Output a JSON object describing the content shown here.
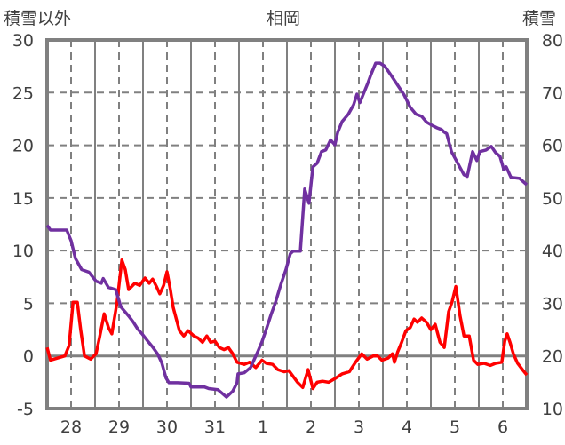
{
  "chart_data": {
    "type": "line",
    "title": "相岡",
    "ylabel_left": "積雪以外",
    "ylabel_right": "積雪",
    "xlabel": "",
    "x_unit": "days since first day 00:00",
    "xlim": [
      0,
      10
    ],
    "ylim_left": [
      -5,
      30
    ],
    "ylim_right": [
      10,
      80
    ],
    "yticks_left": [
      "-5",
      "0",
      "5",
      "10",
      "15",
      "20",
      "25",
      "30"
    ],
    "yticks_right": [
      "10",
      "20",
      "30",
      "40",
      "50",
      "60",
      "70",
      "80"
    ],
    "xtick_labels": [
      "28",
      "29",
      "30",
      "31",
      "1",
      "2",
      "3",
      "4",
      "5",
      "6"
    ],
    "grid": true,
    "series": [
      {
        "name": "積雪以外",
        "axis": "left",
        "color": "#FF0000",
        "points": [
          [
            0.0,
            0.8
          ],
          [
            0.07,
            -0.4
          ],
          [
            0.22,
            -0.2
          ],
          [
            0.37,
            0.0
          ],
          [
            0.46,
            1.0
          ],
          [
            0.54,
            5.1
          ],
          [
            0.63,
            5.1
          ],
          [
            0.7,
            2.5
          ],
          [
            0.78,
            0.0
          ],
          [
            0.91,
            -0.3
          ],
          [
            1.02,
            0.2
          ],
          [
            1.09,
            1.7
          ],
          [
            1.19,
            4.0
          ],
          [
            1.28,
            2.7
          ],
          [
            1.35,
            2.1
          ],
          [
            1.46,
            5.1
          ],
          [
            1.56,
            9.1
          ],
          [
            1.63,
            8.2
          ],
          [
            1.7,
            6.3
          ],
          [
            1.83,
            6.9
          ],
          [
            1.93,
            6.7
          ],
          [
            2.04,
            7.4
          ],
          [
            2.13,
            6.9
          ],
          [
            2.2,
            7.3
          ],
          [
            2.28,
            6.6
          ],
          [
            2.35,
            5.9
          ],
          [
            2.43,
            6.7
          ],
          [
            2.5,
            8.0
          ],
          [
            2.57,
            6.3
          ],
          [
            2.63,
            4.6
          ],
          [
            2.76,
            2.4
          ],
          [
            2.85,
            1.9
          ],
          [
            2.94,
            2.4
          ],
          [
            3.06,
            1.9
          ],
          [
            3.15,
            1.7
          ],
          [
            3.24,
            1.3
          ],
          [
            3.33,
            1.9
          ],
          [
            3.41,
            1.3
          ],
          [
            3.5,
            1.4
          ],
          [
            3.59,
            0.8
          ],
          [
            3.69,
            0.6
          ],
          [
            3.78,
            0.8
          ],
          [
            3.87,
            0.2
          ],
          [
            3.96,
            -0.6
          ],
          [
            4.11,
            -0.8
          ],
          [
            4.22,
            -0.6
          ],
          [
            4.35,
            -1.1
          ],
          [
            4.48,
            -0.4
          ],
          [
            4.57,
            -0.7
          ],
          [
            4.7,
            -0.8
          ],
          [
            4.81,
            -1.3
          ],
          [
            4.94,
            -1.5
          ],
          [
            5.04,
            -1.4
          ],
          [
            5.22,
            -2.5
          ],
          [
            5.33,
            -3.0
          ],
          [
            5.44,
            -1.3
          ],
          [
            5.54,
            -3.1
          ],
          [
            5.63,
            -2.5
          ],
          [
            5.74,
            -2.4
          ],
          [
            5.87,
            -2.5
          ],
          [
            6.02,
            -2.1
          ],
          [
            6.15,
            -1.7
          ],
          [
            6.3,
            -1.5
          ],
          [
            6.43,
            -0.6
          ],
          [
            6.56,
            0.2
          ],
          [
            6.67,
            -0.3
          ],
          [
            6.8,
            0.0
          ],
          [
            6.89,
            0.0
          ],
          [
            6.98,
            -0.4
          ],
          [
            7.11,
            -0.2
          ],
          [
            7.2,
            0.2
          ],
          [
            7.24,
            -0.6
          ],
          [
            7.31,
            0.4
          ],
          [
            7.39,
            1.3
          ],
          [
            7.48,
            2.4
          ],
          [
            7.57,
            2.7
          ],
          [
            7.65,
            3.5
          ],
          [
            7.72,
            3.2
          ],
          [
            7.81,
            3.6
          ],
          [
            7.91,
            3.2
          ],
          [
            8.0,
            2.5
          ],
          [
            8.09,
            3.0
          ],
          [
            8.19,
            1.3
          ],
          [
            8.28,
            0.8
          ],
          [
            8.37,
            4.2
          ],
          [
            8.44,
            5.1
          ],
          [
            8.52,
            6.6
          ],
          [
            8.61,
            3.8
          ],
          [
            8.69,
            1.9
          ],
          [
            8.8,
            1.9
          ],
          [
            8.89,
            -0.4
          ],
          [
            8.98,
            -0.8
          ],
          [
            9.11,
            -0.7
          ],
          [
            9.24,
            -0.9
          ],
          [
            9.35,
            -0.7
          ],
          [
            9.48,
            -0.6
          ],
          [
            9.54,
            1.4
          ],
          [
            9.59,
            2.1
          ],
          [
            9.65,
            1.3
          ],
          [
            9.72,
            0.2
          ],
          [
            9.81,
            -0.7
          ],
          [
            9.91,
            -1.3
          ],
          [
            10.0,
            -1.8
          ]
        ]
      },
      {
        "name": "積雪",
        "axis": "right",
        "color": "#7030A0",
        "points": [
          [
            0.0,
            44.8
          ],
          [
            0.07,
            43.9
          ],
          [
            0.41,
            43.9
          ],
          [
            0.5,
            41.9
          ],
          [
            0.59,
            38.5
          ],
          [
            0.72,
            36.4
          ],
          [
            0.87,
            35.9
          ],
          [
            1.02,
            34.2
          ],
          [
            1.13,
            33.8
          ],
          [
            1.17,
            34.7
          ],
          [
            1.28,
            33.0
          ],
          [
            1.43,
            32.6
          ],
          [
            1.54,
            29.3
          ],
          [
            1.7,
            27.6
          ],
          [
            1.8,
            26.4
          ],
          [
            1.89,
            25.1
          ],
          [
            1.98,
            24.2
          ],
          [
            2.09,
            22.9
          ],
          [
            2.2,
            21.7
          ],
          [
            2.31,
            20.3
          ],
          [
            2.39,
            18.7
          ],
          [
            2.48,
            15.8
          ],
          [
            2.54,
            14.9
          ],
          [
            2.72,
            14.9
          ],
          [
            2.96,
            14.8
          ],
          [
            3.0,
            14.1
          ],
          [
            3.28,
            14.1
          ],
          [
            3.37,
            13.8
          ],
          [
            3.56,
            13.6
          ],
          [
            3.65,
            12.9
          ],
          [
            3.74,
            12.2
          ],
          [
            3.87,
            13.3
          ],
          [
            3.96,
            14.9
          ],
          [
            3.98,
            16.6
          ],
          [
            4.11,
            16.8
          ],
          [
            4.24,
            17.8
          ],
          [
            4.39,
            20.8
          ],
          [
            4.48,
            22.7
          ],
          [
            4.57,
            25.1
          ],
          [
            4.67,
            27.9
          ],
          [
            4.76,
            30.1
          ],
          [
            4.87,
            33.5
          ],
          [
            4.98,
            36.4
          ],
          [
            5.07,
            39.4
          ],
          [
            5.13,
            39.9
          ],
          [
            5.28,
            39.9
          ],
          [
            5.37,
            51.7
          ],
          [
            5.46,
            49.0
          ],
          [
            5.54,
            55.9
          ],
          [
            5.63,
            56.6
          ],
          [
            5.72,
            58.8
          ],
          [
            5.81,
            59.1
          ],
          [
            5.91,
            61.0
          ],
          [
            6.0,
            60.1
          ],
          [
            6.06,
            62.5
          ],
          [
            6.15,
            64.5
          ],
          [
            6.28,
            65.9
          ],
          [
            6.39,
            67.7
          ],
          [
            6.46,
            69.7
          ],
          [
            6.52,
            68.1
          ],
          [
            6.57,
            69.2
          ],
          [
            6.69,
            71.9
          ],
          [
            6.76,
            73.6
          ],
          [
            6.85,
            75.6
          ],
          [
            6.94,
            75.6
          ],
          [
            7.04,
            75.0
          ],
          [
            7.17,
            73.3
          ],
          [
            7.31,
            71.4
          ],
          [
            7.44,
            69.6
          ],
          [
            7.57,
            67.2
          ],
          [
            7.69,
            65.9
          ],
          [
            7.81,
            65.5
          ],
          [
            7.91,
            64.4
          ],
          [
            8.04,
            63.7
          ],
          [
            8.13,
            63.3
          ],
          [
            8.22,
            63.0
          ],
          [
            8.28,
            62.5
          ],
          [
            8.33,
            62.2
          ],
          [
            8.43,
            58.8
          ],
          [
            8.56,
            56.6
          ],
          [
            8.69,
            54.4
          ],
          [
            8.76,
            54.1
          ],
          [
            8.87,
            58.8
          ],
          [
            8.96,
            57.1
          ],
          [
            9.02,
            58.8
          ],
          [
            9.15,
            59.1
          ],
          [
            9.26,
            59.8
          ],
          [
            9.35,
            58.6
          ],
          [
            9.44,
            57.9
          ],
          [
            9.52,
            55.4
          ],
          [
            9.57,
            55.9
          ],
          [
            9.67,
            53.9
          ],
          [
            9.85,
            53.7
          ],
          [
            10.0,
            52.5
          ]
        ]
      }
    ]
  }
}
